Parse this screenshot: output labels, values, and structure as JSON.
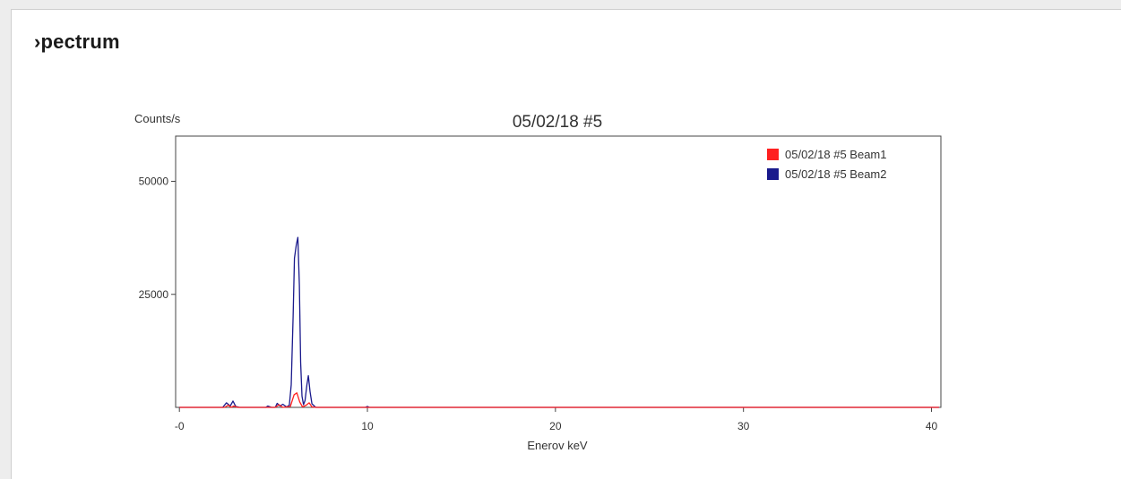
{
  "section": {
    "title": "›pectrum"
  },
  "chart_data": {
    "type": "line",
    "title": "05/02/18 #5",
    "xlabel": "Enerov keV",
    "ylabel": "Counts/s",
    "xlim": [
      -0.2,
      40.5
    ],
    "ylim": [
      0,
      60000
    ],
    "x_ticks": [
      {
        "value": 0,
        "label": "-0"
      },
      {
        "value": 10,
        "label": "10"
      },
      {
        "value": 20,
        "label": "20"
      },
      {
        "value": 30,
        "label": "30"
      },
      {
        "value": 40,
        "label": "40"
      }
    ],
    "y_ticks": [
      {
        "value": 25000,
        "label": "25000"
      },
      {
        "value": 50000,
        "label": "50000"
      }
    ],
    "grid": false,
    "legend_position": "top-right",
    "series": [
      {
        "name": "05/02/18 #5 Beam1",
        "color": "#ff2020",
        "points": [
          [
            0.0,
            0
          ],
          [
            2.4,
            0
          ],
          [
            2.6,
            500
          ],
          [
            2.75,
            0
          ],
          [
            2.9,
            300
          ],
          [
            3.1,
            0
          ],
          [
            5.1,
            0
          ],
          [
            5.3,
            600
          ],
          [
            5.5,
            0
          ],
          [
            5.9,
            200
          ],
          [
            6.1,
            2800
          ],
          [
            6.25,
            3200
          ],
          [
            6.4,
            1200
          ],
          [
            6.55,
            100
          ],
          [
            6.75,
            500
          ],
          [
            6.9,
            1000
          ],
          [
            7.05,
            100
          ],
          [
            7.3,
            0
          ],
          [
            40.4,
            0
          ]
        ]
      },
      {
        "name": "05/02/18 #5 Beam2",
        "color": "#1a1a8c",
        "points": [
          [
            0.0,
            0
          ],
          [
            2.3,
            0
          ],
          [
            2.5,
            1000
          ],
          [
            2.7,
            300
          ],
          [
            2.85,
            1400
          ],
          [
            3.0,
            200
          ],
          [
            3.2,
            0
          ],
          [
            4.6,
            0
          ],
          [
            4.7,
            300
          ],
          [
            4.9,
            0
          ],
          [
            5.1,
            0
          ],
          [
            5.2,
            900
          ],
          [
            5.35,
            300
          ],
          [
            5.5,
            700
          ],
          [
            5.7,
            100
          ],
          [
            5.85,
            500
          ],
          [
            5.95,
            5000
          ],
          [
            6.05,
            20000
          ],
          [
            6.12,
            33000
          ],
          [
            6.22,
            36000
          ],
          [
            6.3,
            37600
          ],
          [
            6.38,
            27000
          ],
          [
            6.45,
            10000
          ],
          [
            6.52,
            2500
          ],
          [
            6.6,
            600
          ],
          [
            6.68,
            1500
          ],
          [
            6.78,
            5000
          ],
          [
            6.86,
            7000
          ],
          [
            6.95,
            3500
          ],
          [
            7.05,
            800
          ],
          [
            7.25,
            0
          ],
          [
            9.9,
            0
          ],
          [
            10.0,
            200
          ],
          [
            10.1,
            0
          ],
          [
            40.4,
            0
          ]
        ]
      }
    ]
  }
}
